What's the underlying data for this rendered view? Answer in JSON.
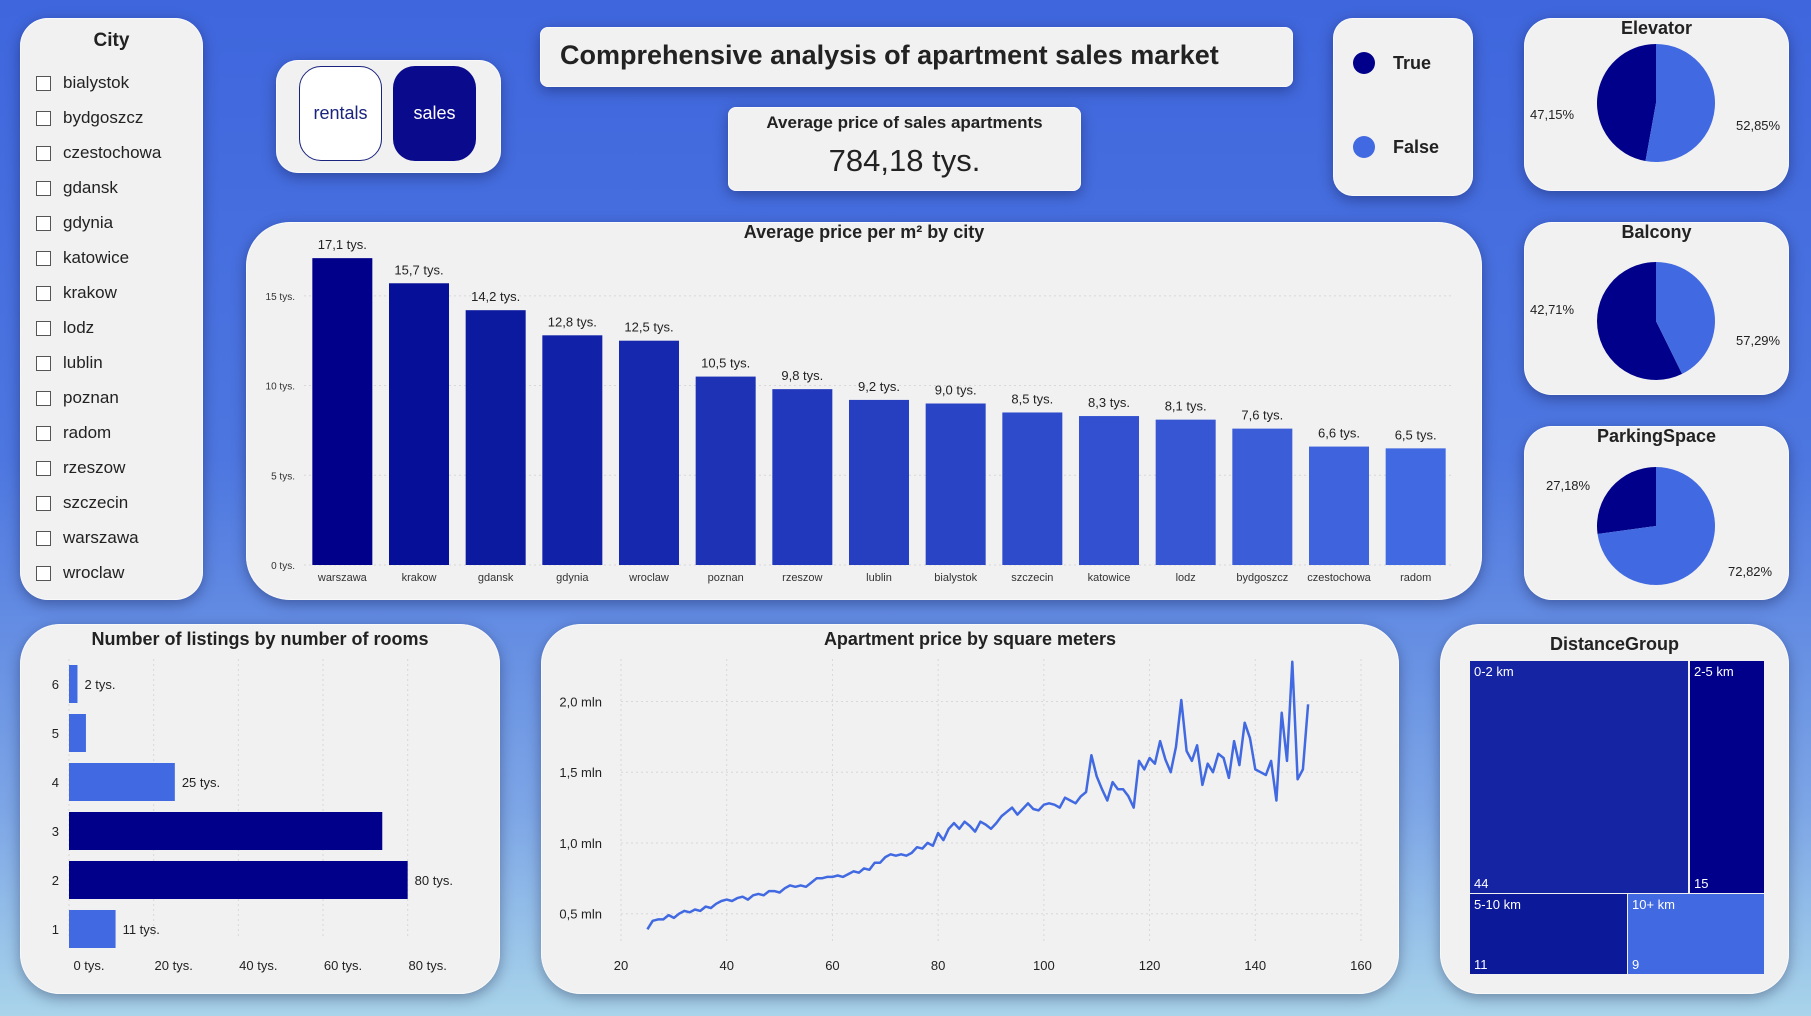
{
  "title": "Comprehensive analysis of apartment sales market",
  "city_slicer": {
    "title": "City",
    "items": [
      "bialystok",
      "bydgoszcz",
      "czestochowa",
      "gdansk",
      "gdynia",
      "katowice",
      "krakow",
      "lodz",
      "lublin",
      "poznan",
      "radom",
      "rzeszow",
      "szczecin",
      "warszawa",
      "wroclaw"
    ]
  },
  "toggle": {
    "rentals_label": "rentals",
    "sales_label": "sales",
    "selected": "sales"
  },
  "average": {
    "label": "Average price of sales apartments",
    "value": "784,18 tys."
  },
  "legend": {
    "items": [
      {
        "label": "True",
        "color": "#00008b"
      },
      {
        "label": "False",
        "color": "#4169e1"
      }
    ]
  },
  "colors": {
    "dark": "#00008b",
    "light": "#4169e1",
    "card": "#f1f1f1"
  },
  "pies": [
    {
      "title": "Elevator",
      "true_pct": 47.15,
      "false_pct": 52.85,
      "true_label": "47,15%",
      "false_label": "52,85%"
    },
    {
      "title": "Balcony",
      "true_pct": 57.29,
      "false_pct": 42.71,
      "true_label": "57,29%",
      "false_label": "42,71%"
    },
    {
      "title": "ParkingSpace",
      "true_pct": 27.18,
      "false_pct": 72.82,
      "true_label": "27,18%",
      "false_label": "72,82%"
    }
  ],
  "chart_data": [
    {
      "type": "bar",
      "title": "Average price per m² by city",
      "categories": [
        "warszawa",
        "krakow",
        "gdansk",
        "gdynia",
        "wroclaw",
        "poznan",
        "rzeszow",
        "lublin",
        "bialystok",
        "szczecin",
        "katowice",
        "lodz",
        "bydgoszcz",
        "czestochowa",
        "radom"
      ],
      "values": [
        17.1,
        15.7,
        14.2,
        12.8,
        12.5,
        10.5,
        9.8,
        9.2,
        9.0,
        8.5,
        8.3,
        8.1,
        7.6,
        6.6,
        6.5
      ],
      "value_labels": [
        "17,1 tys.",
        "15,7 tys.",
        "14,2 tys.",
        "12,8 tys.",
        "12,5 tys.",
        "10,5 tys.",
        "9,8 tys.",
        "9,2 tys.",
        "9,0 tys.",
        "8,5 tys.",
        "8,3 tys.",
        "8,1 tys.",
        "7,6 tys.",
        "6,6 tys.",
        "6,5 tys."
      ],
      "ylim": [
        0,
        18
      ],
      "yticks": [
        0,
        5,
        10,
        15
      ],
      "ytick_labels": [
        "0 tys.",
        "5 tys.",
        "10 tys.",
        "15 tys."
      ],
      "grid": true
    },
    {
      "type": "bar",
      "orientation": "horizontal",
      "title": "Number of listings by number of rooms",
      "categories": [
        "6",
        "5",
        "4",
        "3",
        "2",
        "1"
      ],
      "values": [
        2,
        4,
        25,
        74,
        80,
        11
      ],
      "value_labels": [
        "2 tys.",
        "",
        "25 tys.",
        "",
        "80 tys.",
        "11 tys."
      ],
      "xlim": [
        0,
        90
      ],
      "xticks": [
        0,
        20,
        40,
        60,
        80
      ],
      "xtick_labels": [
        "0 tys.",
        "20 tys.",
        "40 tys.",
        "60 tys.",
        "80 tys."
      ],
      "grid": true
    },
    {
      "type": "line",
      "title": "Apartment price by square meters",
      "x": [
        25,
        26,
        27,
        28,
        29,
        30,
        31,
        32,
        33,
        34,
        35,
        36,
        37,
        38,
        39,
        40,
        41,
        42,
        43,
        44,
        45,
        46,
        47,
        48,
        49,
        50,
        51,
        52,
        53,
        54,
        55,
        56,
        57,
        58,
        59,
        60,
        61,
        62,
        63,
        64,
        65,
        66,
        67,
        68,
        69,
        70,
        71,
        72,
        73,
        74,
        75,
        76,
        77,
        78,
        79,
        80,
        81,
        82,
        83,
        84,
        85,
        86,
        87,
        88,
        89,
        90,
        91,
        92,
        93,
        94,
        95,
        96,
        97,
        98,
        99,
        100,
        101,
        102,
        103,
        104,
        105,
        106,
        107,
        108,
        109,
        110,
        111,
        112,
        113,
        114,
        115,
        116,
        117,
        118,
        119,
        120,
        121,
        122,
        123,
        124,
        125,
        126,
        127,
        128,
        129,
        130,
        131,
        132,
        133,
        134,
        135,
        136,
        137,
        138,
        139,
        140,
        141,
        142,
        143,
        144,
        145,
        146,
        147,
        148,
        149,
        150
      ],
      "y": [
        0.39,
        0.45,
        0.46,
        0.46,
        0.49,
        0.47,
        0.5,
        0.52,
        0.51,
        0.53,
        0.52,
        0.55,
        0.54,
        0.57,
        0.59,
        0.6,
        0.59,
        0.61,
        0.62,
        0.6,
        0.63,
        0.64,
        0.63,
        0.66,
        0.66,
        0.65,
        0.68,
        0.7,
        0.69,
        0.7,
        0.69,
        0.72,
        0.75,
        0.75,
        0.76,
        0.76,
        0.77,
        0.76,
        0.78,
        0.8,
        0.79,
        0.82,
        0.81,
        0.86,
        0.86,
        0.9,
        0.92,
        0.91,
        0.92,
        0.91,
        0.93,
        0.97,
        0.96,
        1.0,
        0.98,
        1.07,
        1.02,
        1.1,
        1.14,
        1.1,
        1.15,
        1.12,
        1.08,
        1.15,
        1.13,
        1.1,
        1.14,
        1.19,
        1.22,
        1.25,
        1.2,
        1.24,
        1.28,
        1.24,
        1.23,
        1.27,
        1.28,
        1.27,
        1.25,
        1.32,
        1.3,
        1.28,
        1.33,
        1.36,
        1.62,
        1.47,
        1.38,
        1.3,
        1.43,
        1.38,
        1.38,
        1.33,
        1.25,
        1.58,
        1.52,
        1.6,
        1.56,
        1.72,
        1.59,
        1.5,
        1.68,
        2.01,
        1.65,
        1.58,
        1.69,
        1.41,
        1.56,
        1.5,
        1.63,
        1.6,
        1.46,
        1.72,
        1.55,
        1.85,
        1.74,
        1.52,
        1.5,
        1.48,
        1.58,
        1.3,
        1.92,
        1.58,
        2.28,
        1.45,
        1.52,
        1.98
      ],
      "xlim": [
        20,
        160
      ],
      "ylim": [
        0.3,
        2.3
      ],
      "xticks": [
        20,
        40,
        60,
        80,
        100,
        120,
        140,
        160
      ],
      "yticks": [
        0.5,
        1.0,
        1.5,
        2.0
      ],
      "ytick_labels": [
        "0,5 mln",
        "1,0 mln",
        "1,5 mln",
        "2,0 mln"
      ],
      "grid": true
    },
    {
      "type": "treemap",
      "title": "DistanceGroup",
      "items": [
        {
          "label": "0-2 km",
          "value": 44
        },
        {
          "label": "2-5 km",
          "value": 15
        },
        {
          "label": "5-10 km",
          "value": 11
        },
        {
          "label": "10+ km",
          "value": 9
        }
      ]
    }
  ]
}
